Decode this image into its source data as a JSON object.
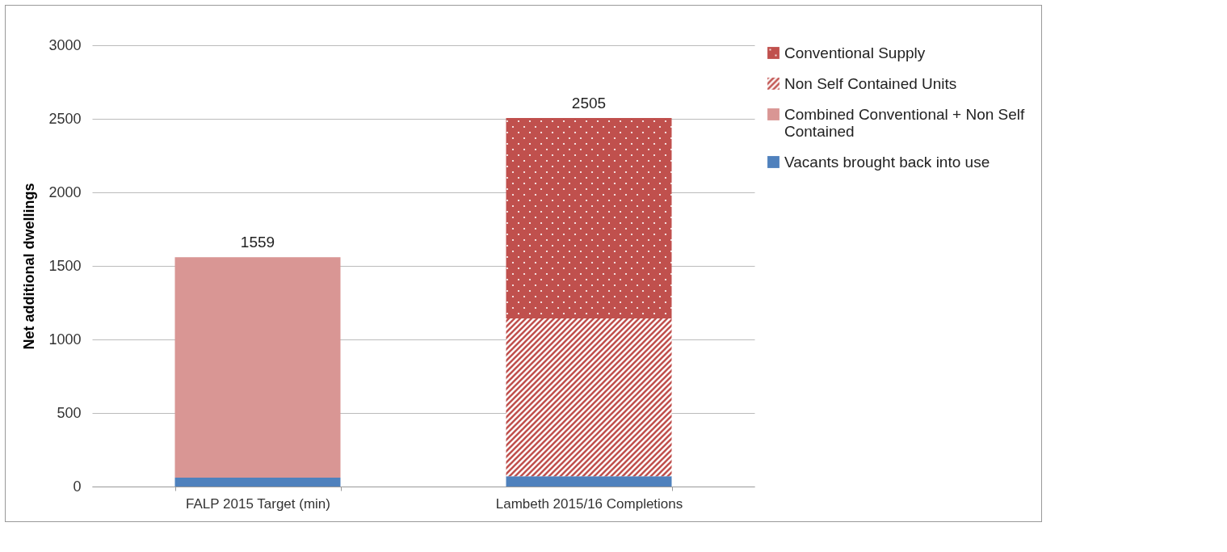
{
  "chart_data": {
    "type": "bar",
    "stacked": true,
    "ylabel": "Net additional dwellings",
    "categories": [
      "FALP 2015 Target (min)",
      "Lambeth 2015/16 Completions"
    ],
    "series": [
      {
        "name": "Vacants brought back into use",
        "color": "#4f81bd",
        "values": [
          60,
          70
        ]
      },
      {
        "name": "Combined Conventional + Non Self Contained",
        "color": "#d99694",
        "values": [
          1499,
          null
        ]
      },
      {
        "name": "Non Self Contained Units",
        "color": "#c0504d",
        "values": [
          null,
          1073
        ]
      },
      {
        "name": "Conventional Supply",
        "color": "#c0504d",
        "values": [
          null,
          1362
        ]
      }
    ],
    "totals": [
      "1559",
      "2505"
    ],
    "ylim": [
      0,
      3000
    ],
    "yticks": [
      0,
      500,
      1000,
      1500,
      2000,
      2500,
      3000
    ],
    "grid": "y",
    "legend": "top right"
  }
}
